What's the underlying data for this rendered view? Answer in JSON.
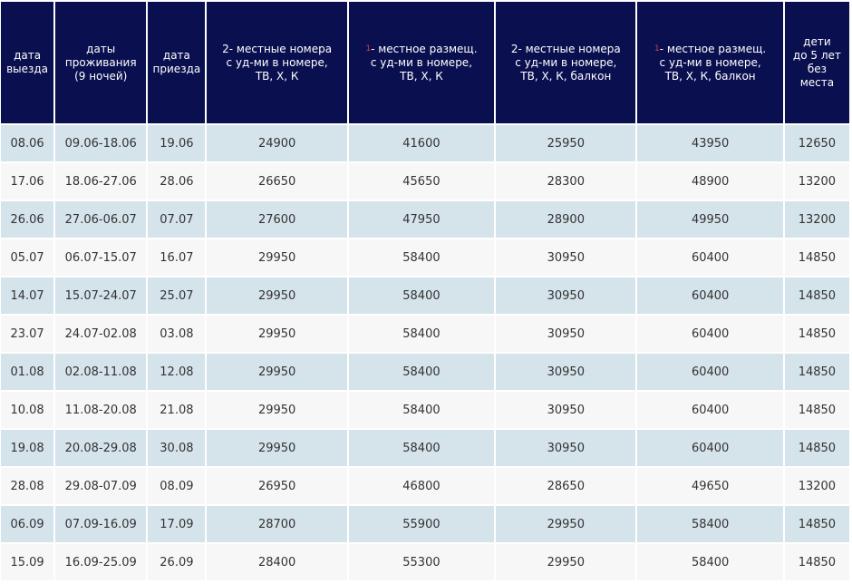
{
  "headers": [
    {
      "lines": [
        "дата",
        "выезда"
      ]
    },
    {
      "lines": [
        "даты",
        "проживания",
        "(9 ночей)"
      ]
    },
    {
      "lines": [
        "дата",
        "приезда"
      ]
    },
    {
      "lines": [
        "2- местные номера",
        "с уд-ми в номере,",
        "ТВ, Х, К"
      ]
    },
    {
      "mark": "1",
      "lines": [
        "- местное размещ.",
        "с уд-ми  в номере,",
        "ТВ, Х, К"
      ]
    },
    {
      "lines": [
        "2- местные номера",
        "с уд-ми в номере,",
        "ТВ, Х, К, балкон"
      ]
    },
    {
      "mark": "1",
      "lines": [
        "- местное размещ.",
        "с уд-ми  в номере,",
        "ТВ, Х, К, балкон"
      ]
    },
    {
      "lines": [
        "дети",
        "до 5 лет",
        "без",
        "места"
      ]
    }
  ],
  "rows": [
    [
      "08.06",
      "09.06-18.06",
      "19.06",
      "24900",
      "41600",
      "25950",
      "43950",
      "12650"
    ],
    [
      "17.06",
      "18.06-27.06",
      "28.06",
      "26650",
      "45650",
      "28300",
      "48900",
      "13200"
    ],
    [
      "26.06",
      "27.06-06.07",
      "07.07",
      "27600",
      "47950",
      "28900",
      "49950",
      "13200"
    ],
    [
      "05.07",
      "06.07-15.07",
      "16.07",
      "29950",
      "58400",
      "30950",
      "60400",
      "14850"
    ],
    [
      "14.07",
      "15.07-24.07",
      "25.07",
      "29950",
      "58400",
      "30950",
      "60400",
      "14850"
    ],
    [
      "23.07",
      "24.07-02.08",
      "03.08",
      "29950",
      "58400",
      "30950",
      "60400",
      "14850"
    ],
    [
      "01.08",
      "02.08-11.08",
      "12.08",
      "29950",
      "58400",
      "30950",
      "60400",
      "14850"
    ],
    [
      "10.08",
      "11.08-20.08",
      "21.08",
      "29950",
      "58400",
      "30950",
      "60400",
      "14850"
    ],
    [
      "19.08",
      "20.08-29.08",
      "30.08",
      "29950",
      "58400",
      "30950",
      "60400",
      "14850"
    ],
    [
      "28.08",
      "29.08-07.09",
      "08.09",
      "26950",
      "46800",
      "28650",
      "49650",
      "13200"
    ],
    [
      "06.09",
      "07.09-16.09",
      "17.09",
      "28700",
      "55900",
      "29950",
      "58400",
      "14850"
    ],
    [
      "15.09",
      "16.09-25.09",
      "26.09",
      "28400",
      "55300",
      "29950",
      "58400",
      "14850"
    ]
  ]
}
